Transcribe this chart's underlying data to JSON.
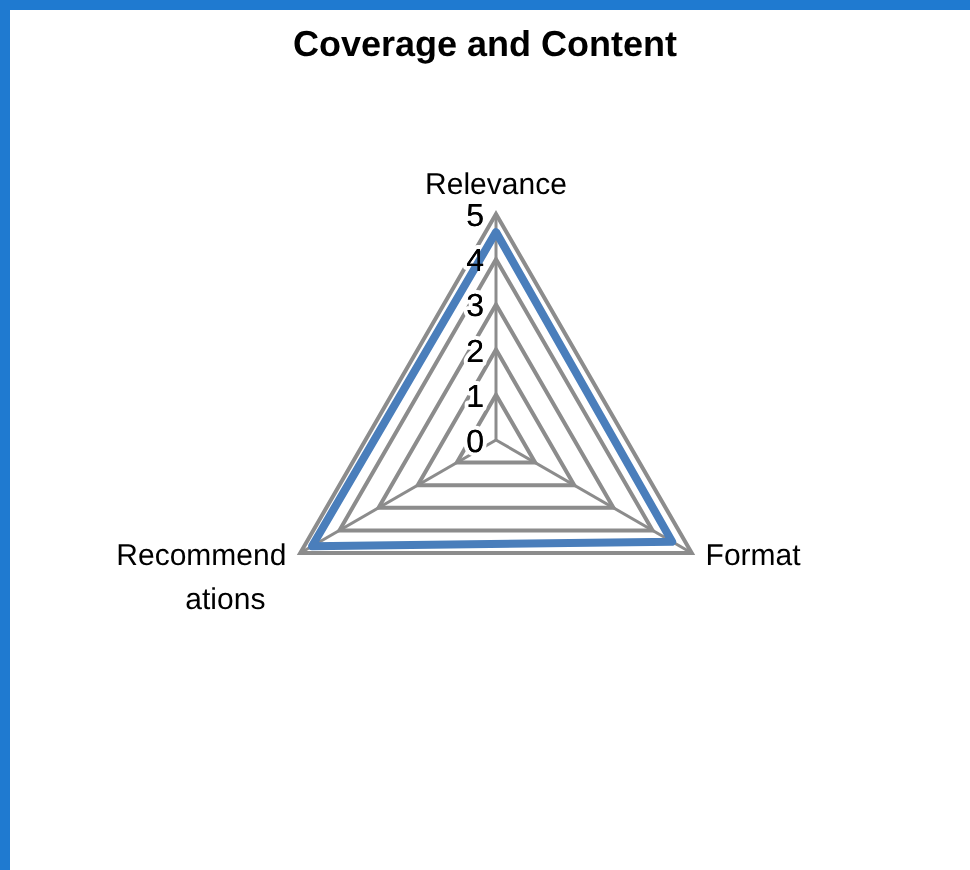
{
  "chart_data": {
    "type": "radar",
    "title": "Coverage and Content",
    "categories": [
      "Relevance",
      "Format",
      "Recommendations"
    ],
    "series": [
      {
        "color": "#4a7ebb",
        "values": [
          4.6,
          4.5,
          4.7
        ]
      }
    ],
    "ylim": [
      0,
      5
    ],
    "yticks": [
      0,
      1,
      2,
      3,
      4,
      5
    ],
    "grid": true,
    "marker": "none",
    "line_style": "solid"
  }
}
